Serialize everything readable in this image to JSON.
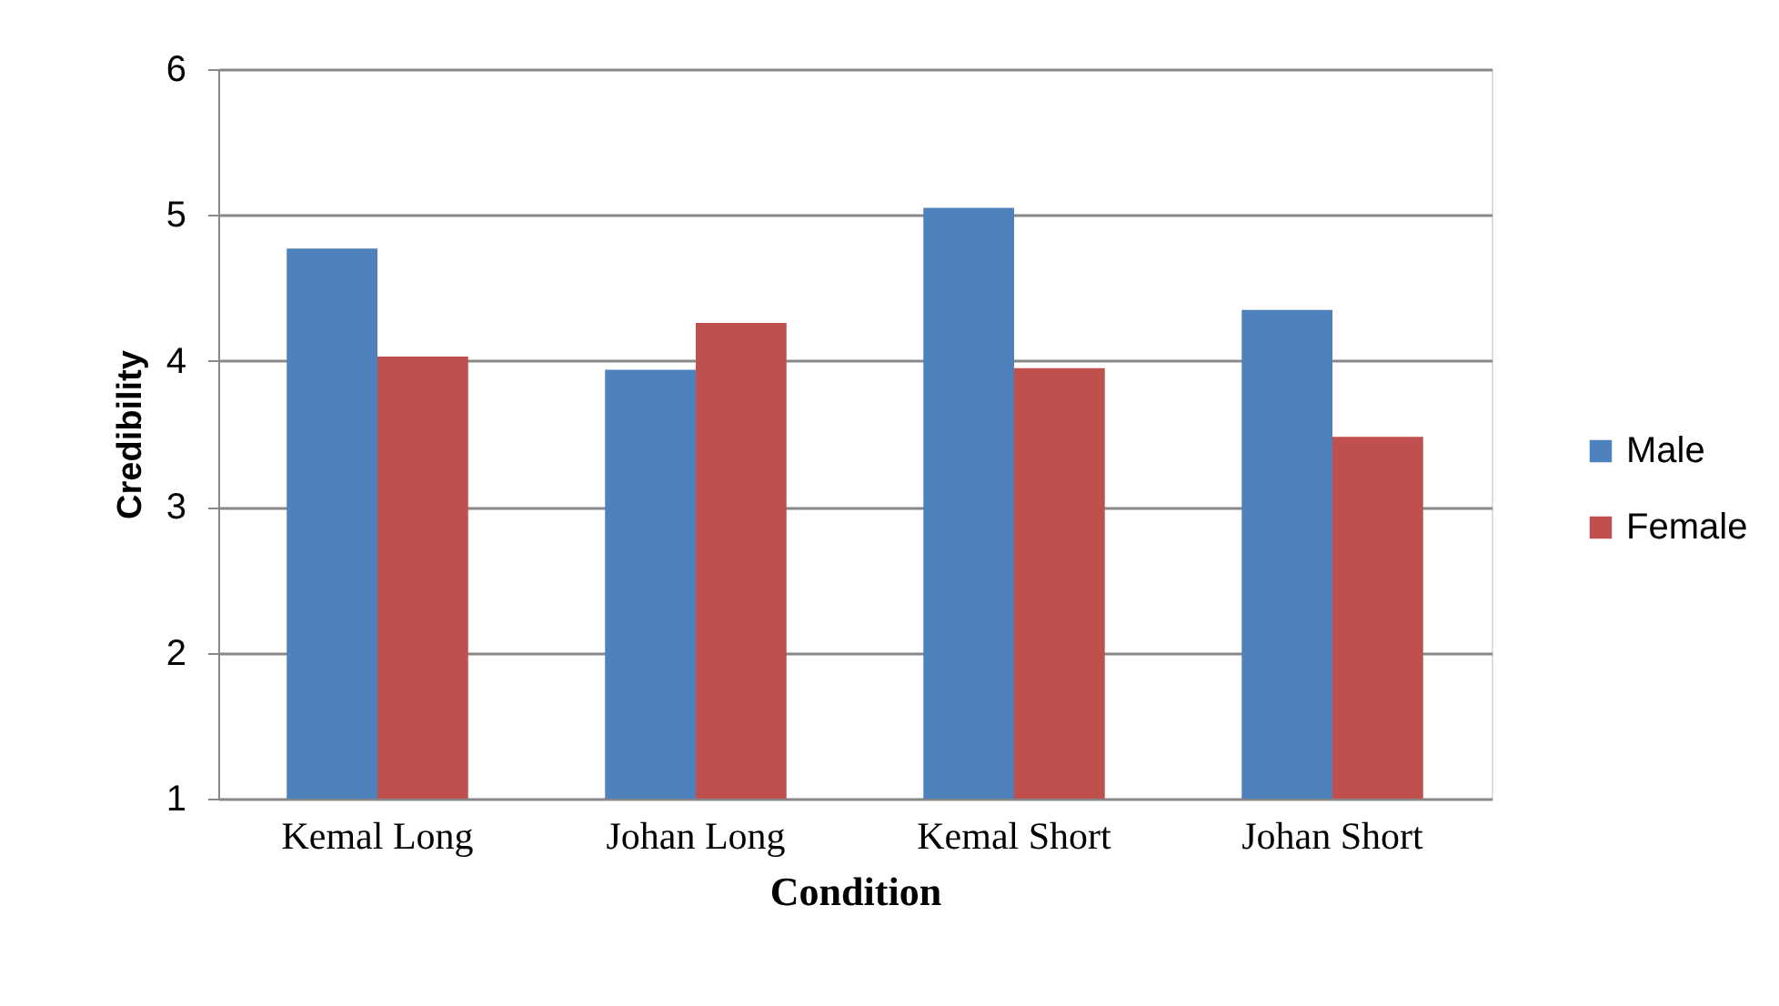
{
  "chart_data": {
    "type": "bar",
    "xlabel": "Condition",
    "ylabel": "Credibility",
    "categories": [
      "Kemal Long",
      "Johan Long",
      "Kemal Short",
      "Johan Short"
    ],
    "series": [
      {
        "name": "Male",
        "color": "#4f81bd",
        "values": [
          4.77,
          3.94,
          5.05,
          4.35
        ]
      },
      {
        "name": "Female",
        "color": "#c0504d",
        "values": [
          4.03,
          4.26,
          3.95,
          3.48
        ]
      }
    ],
    "ylim": [
      1,
      6
    ],
    "yticks": [
      1,
      2,
      3,
      4,
      5,
      6
    ],
    "grid": "y",
    "legend": "right"
  }
}
